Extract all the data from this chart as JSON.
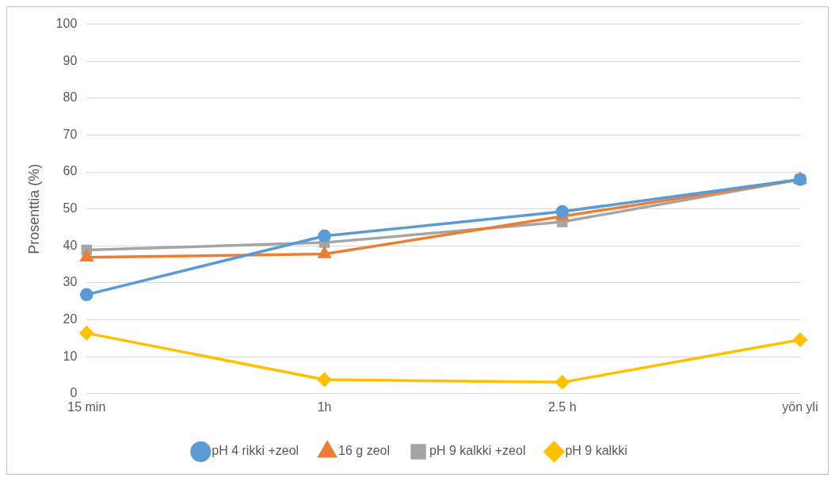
{
  "chart_data": {
    "type": "line",
    "ylabel": "Prosenttia (%)",
    "categories": [
      "15 min",
      "1h",
      "2.5 h",
      "yön yli"
    ],
    "ylim": [
      0,
      100
    ],
    "yticks": [
      0,
      10,
      20,
      30,
      40,
      50,
      60,
      70,
      80,
      90,
      100
    ],
    "grid": "y",
    "legend": "bottom",
    "line_style": "solid",
    "series": [
      {
        "name": "pH 4 rikki +zeol",
        "color": "#5b9bd5",
        "marker": "circle",
        "values": [
          26.8,
          42.7,
          49.3,
          58
        ]
      },
      {
        "name": "16 g zeol",
        "color": "#ed7d31",
        "marker": "triangle",
        "values": [
          36.9,
          37.8,
          48,
          58
        ]
      },
      {
        "name": "pH 9 kalkki +zeol",
        "color": "#a5a5a5",
        "marker": "square",
        "values": [
          38.9,
          40.9,
          46.5,
          58
        ]
      },
      {
        "name": "pH 9 kalkki",
        "color": "#ffc000",
        "marker": "diamond",
        "values": [
          16.4,
          3.8,
          3.1,
          14.6
        ]
      }
    ]
  }
}
